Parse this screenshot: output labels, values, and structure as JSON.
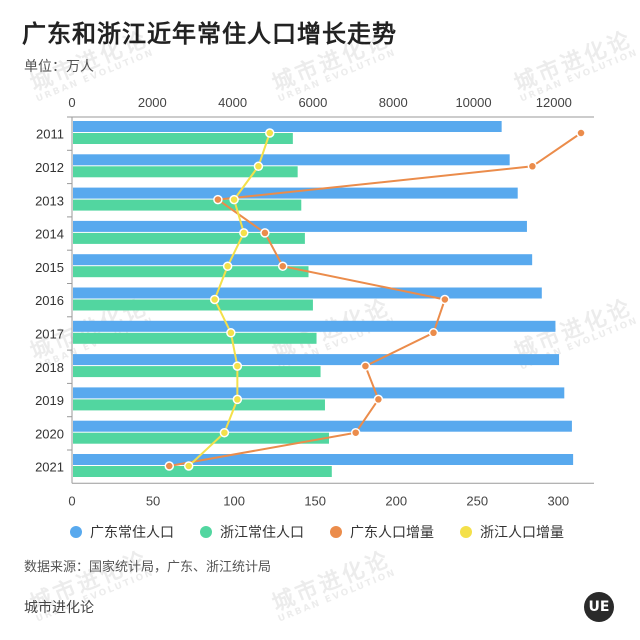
{
  "title": "广东和浙江近年常住人口增长走势",
  "unit_label": "单位：万人",
  "source_text": "数据来源：国家统计局，广东、浙江统计局",
  "brand_text": "城市进化论",
  "logo_text": "UE",
  "watermark": {
    "cn": "城市进化论",
    "en": "URBAN EVOLUTION"
  },
  "colors": {
    "guangdong_pop": "#58A9EE",
    "zhejiang_pop": "#52D6A0",
    "guangdong_inc": "#EB8C4B",
    "zhejiang_inc": "#F4E04A"
  },
  "chart_data": {
    "type": "bar",
    "orientation": "horizontal",
    "categories": [
      "2011",
      "2012",
      "2013",
      "2014",
      "2015",
      "2016",
      "2017",
      "2018",
      "2019",
      "2020",
      "2021"
    ],
    "series": [
      {
        "name": "广东常住人口",
        "type": "bar",
        "axis": "top",
        "values": [
          10700,
          10900,
          11100,
          11330,
          11460,
          11700,
          12040,
          12130,
          12260,
          12450,
          12480
        ]
      },
      {
        "name": "浙江常住人口",
        "type": "bar",
        "axis": "top",
        "values": [
          5500,
          5620,
          5710,
          5800,
          5890,
          6000,
          6090,
          6190,
          6300,
          6400,
          6470
        ]
      },
      {
        "name": "广东人口增量",
        "type": "line",
        "axis": "bottom",
        "values": [
          314,
          284,
          90,
          119,
          130,
          230,
          223,
          181,
          189,
          175,
          60
        ]
      },
      {
        "name": "浙江人口增量",
        "type": "line",
        "axis": "bottom",
        "values": [
          122,
          115,
          100,
          106,
          96,
          88,
          98,
          102,
          102,
          94,
          72
        ]
      }
    ],
    "x_top": {
      "ticks": [
        "0",
        "2000",
        "4000",
        "6000",
        "8000",
        "10000",
        "12000"
      ],
      "range": [
        0,
        13000
      ]
    },
    "x_bottom": {
      "ticks": [
        "0",
        "50",
        "100",
        "150",
        "200",
        "250",
        "300"
      ],
      "range": [
        0,
        322
      ]
    },
    "grid": false,
    "legend": "bottom"
  }
}
